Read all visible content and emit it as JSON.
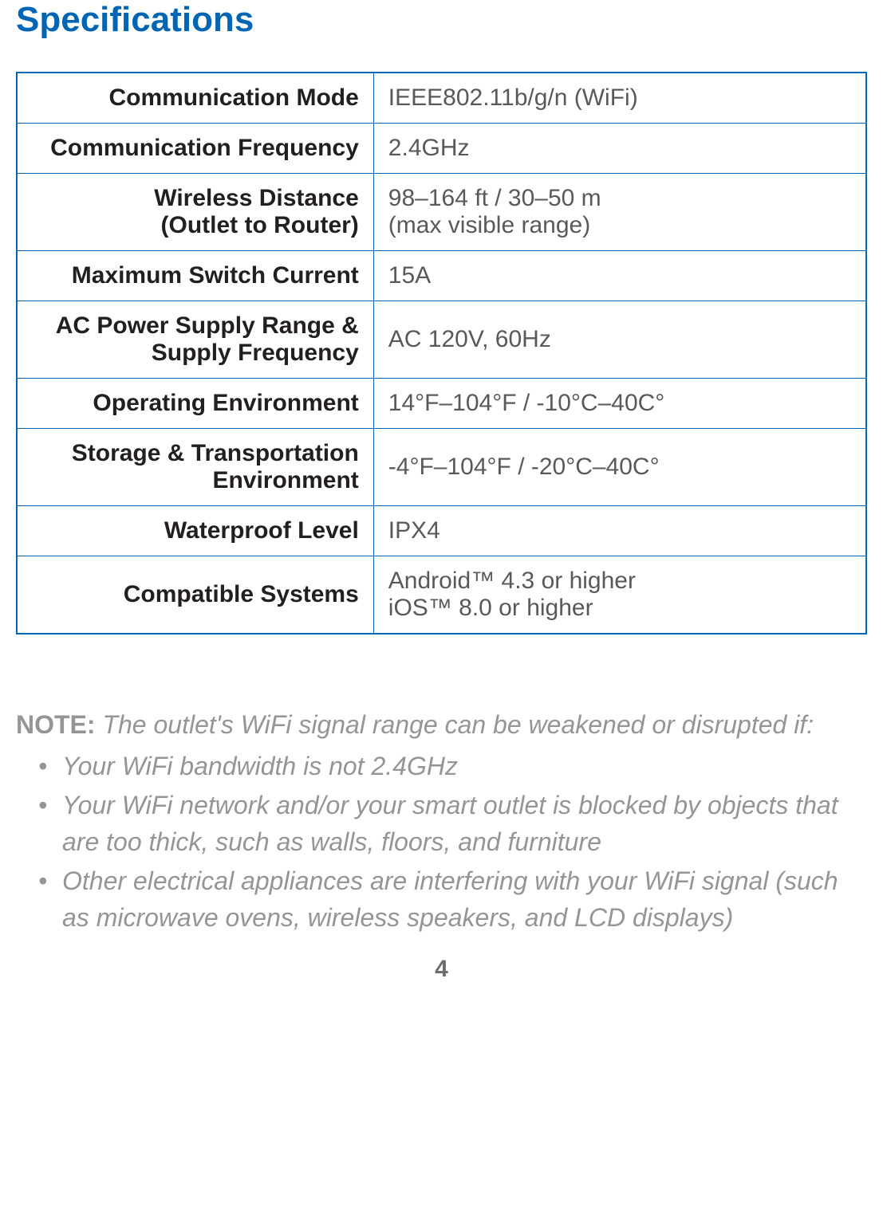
{
  "title": "Specifications",
  "table": {
    "border_color": "#0066b3",
    "label_color": "#231f20",
    "value_color": "#58595b",
    "font_size": 30,
    "rows": [
      {
        "label": "Communication Mode",
        "value": "IEEE802.11b/g/n (WiFi)"
      },
      {
        "label": "Communication Frequency",
        "value": "2.4GHz"
      },
      {
        "label_line1": "Wireless Distance",
        "label_line2": "(Outlet to Router)",
        "value_line1": "98–164 ft / 30–50 m",
        "value_line2": "(max visible range)"
      },
      {
        "label": "Maximum Switch Current",
        "value": "15A"
      },
      {
        "label_line1": "AC Power Supply Range &",
        "label_line2": "Supply Frequency",
        "value": "AC 120V, 60Hz"
      },
      {
        "label": "Operating Environment",
        "value": "14°F–104°F / -10°C–40C°"
      },
      {
        "label_line1": "Storage & Transportation",
        "label_line2": "Environment",
        "value": "-4°F–104°F / -20°C–40C°"
      },
      {
        "label": "Waterproof Level",
        "value": "IPX4"
      },
      {
        "label": "Compatible Systems",
        "value_line1": "Android™ 4.3 or higher",
        "value_line2": "iOS™ 8.0 or higher"
      }
    ]
  },
  "note": {
    "label": "NOTE:",
    "intro": "The outlet's WiFi signal range can be weakened or disrupted if:",
    "items": [
      "Your WiFi bandwidth is not 2.4GHz",
      "Your WiFi network and/or your smart outlet is blocked by objects that are too thick, such as walls, floors, and furniture",
      "Other electrical appliances are interfering with your WiFi signal (such as microwave ovens, wireless speakers, and LCD displays)"
    ],
    "text_color": "#939598",
    "font_size": 32
  },
  "page_number": "4",
  "colors": {
    "title": "#0066b3",
    "background": "#ffffff",
    "page_number": "#6d6e71"
  }
}
